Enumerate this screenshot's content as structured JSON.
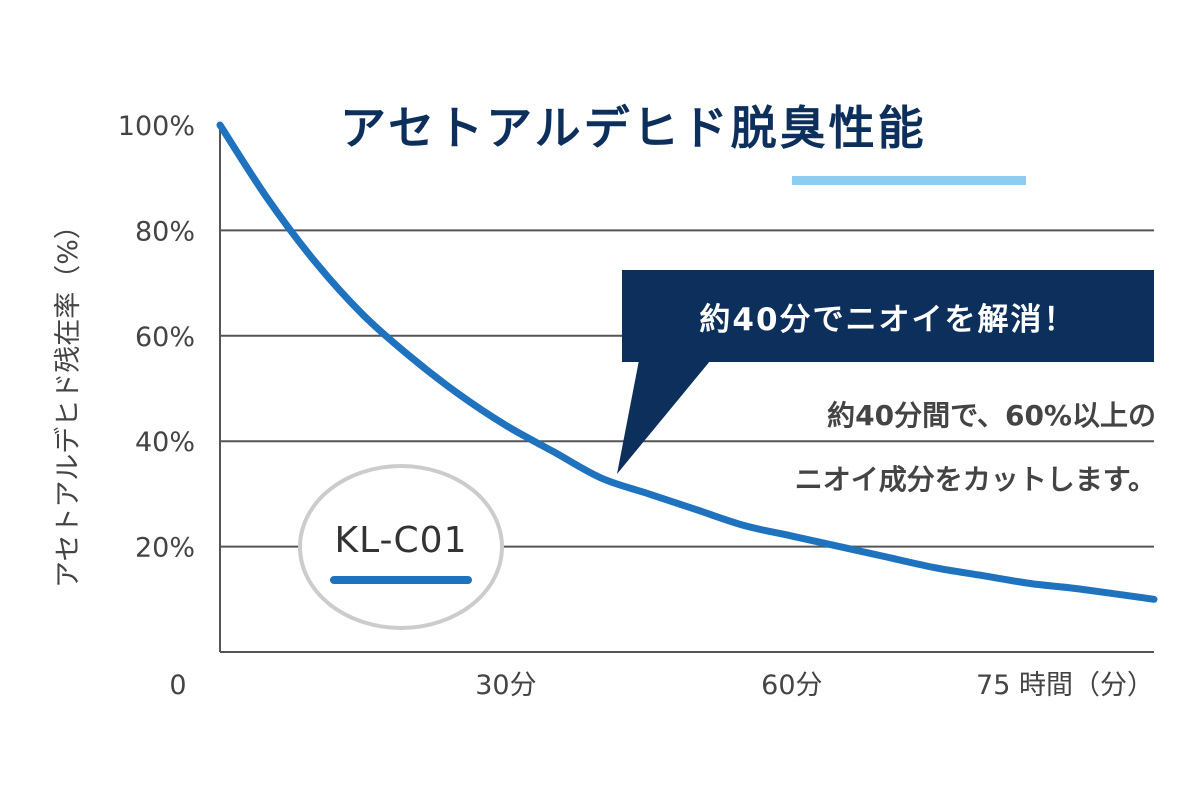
{
  "chart_data": {
    "type": "line",
    "title": "アセトアルデヒド脱臭性能",
    "ylabel": "アセトアルデヒド残在率（%）",
    "xlabel": "時間（分）",
    "x_ticks": [
      {
        "value": 0,
        "label": "0"
      },
      {
        "value": 30,
        "label": "30分"
      },
      {
        "value": 60,
        "label": "60分"
      },
      {
        "value": 75,
        "label": "75 時間（分）"
      }
    ],
    "y_ticks": [
      {
        "value": 100,
        "label": "100%"
      },
      {
        "value": 80,
        "label": "80%"
      },
      {
        "value": 60,
        "label": "60%"
      },
      {
        "value": 40,
        "label": "40%"
      },
      {
        "value": 20,
        "label": "20%"
      }
    ],
    "xlim": [
      0,
      98
    ],
    "ylim": [
      0,
      100
    ],
    "grid": true,
    "series": [
      {
        "color": "#1f72bd",
        "x": [
          0,
          5,
          10,
          15,
          20,
          25,
          30,
          35,
          40,
          45,
          50,
          55,
          60,
          65,
          70,
          75,
          80,
          85,
          90,
          98
        ],
        "y": [
          100,
          86,
          74,
          64,
          56,
          49,
          43,
          38,
          33,
          30,
          27,
          24,
          22,
          20,
          18,
          16,
          14.5,
          13,
          12,
          10
        ]
      }
    ],
    "annotations": {
      "callout": "約40分でニオイを解消！",
      "note_line1": "約40分間で、60%以上の",
      "note_line2": "ニオイ成分をカットします。",
      "model_label": "KL-C01"
    }
  },
  "colors": {
    "navy": "#0d2f5c",
    "line": "#1f72bd",
    "underline": "#8ecdf0",
    "grid": "#555555",
    "badge_border": "#cccccc"
  }
}
